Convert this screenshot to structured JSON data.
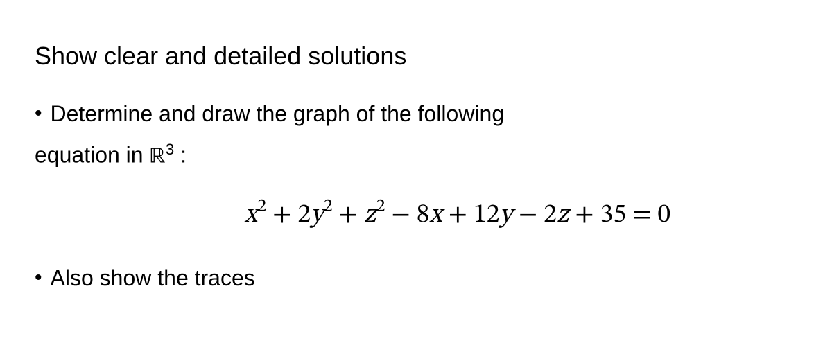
{
  "heading": "Show clear and detailed solutions",
  "bullet1_line1": "Determine and draw the graph of the following",
  "bullet1_line2_pre": "equation in ",
  "bullet1_line2_r": "ℝ",
  "bullet1_line2_exp": "3",
  "bullet1_line2_post": " :",
  "equation": {
    "x": "x",
    "sq1": "2",
    "plus1": " + 2",
    "y": "y",
    "sq2": "2",
    "plus2": " + ",
    "z": "z",
    "sq3": "2",
    "minus1": " − 8",
    "x2": "x",
    "plus3": " + 12",
    "y2": "y",
    "minus2": " − 2",
    "z2": "z",
    "plus4": " + 35 = 0"
  },
  "bullet2": "Also show the traces",
  "colors": {
    "background": "#ffffff",
    "text": "#000000"
  },
  "fonts": {
    "body_size": 32,
    "heading_size": 36,
    "equation_size": 38
  }
}
